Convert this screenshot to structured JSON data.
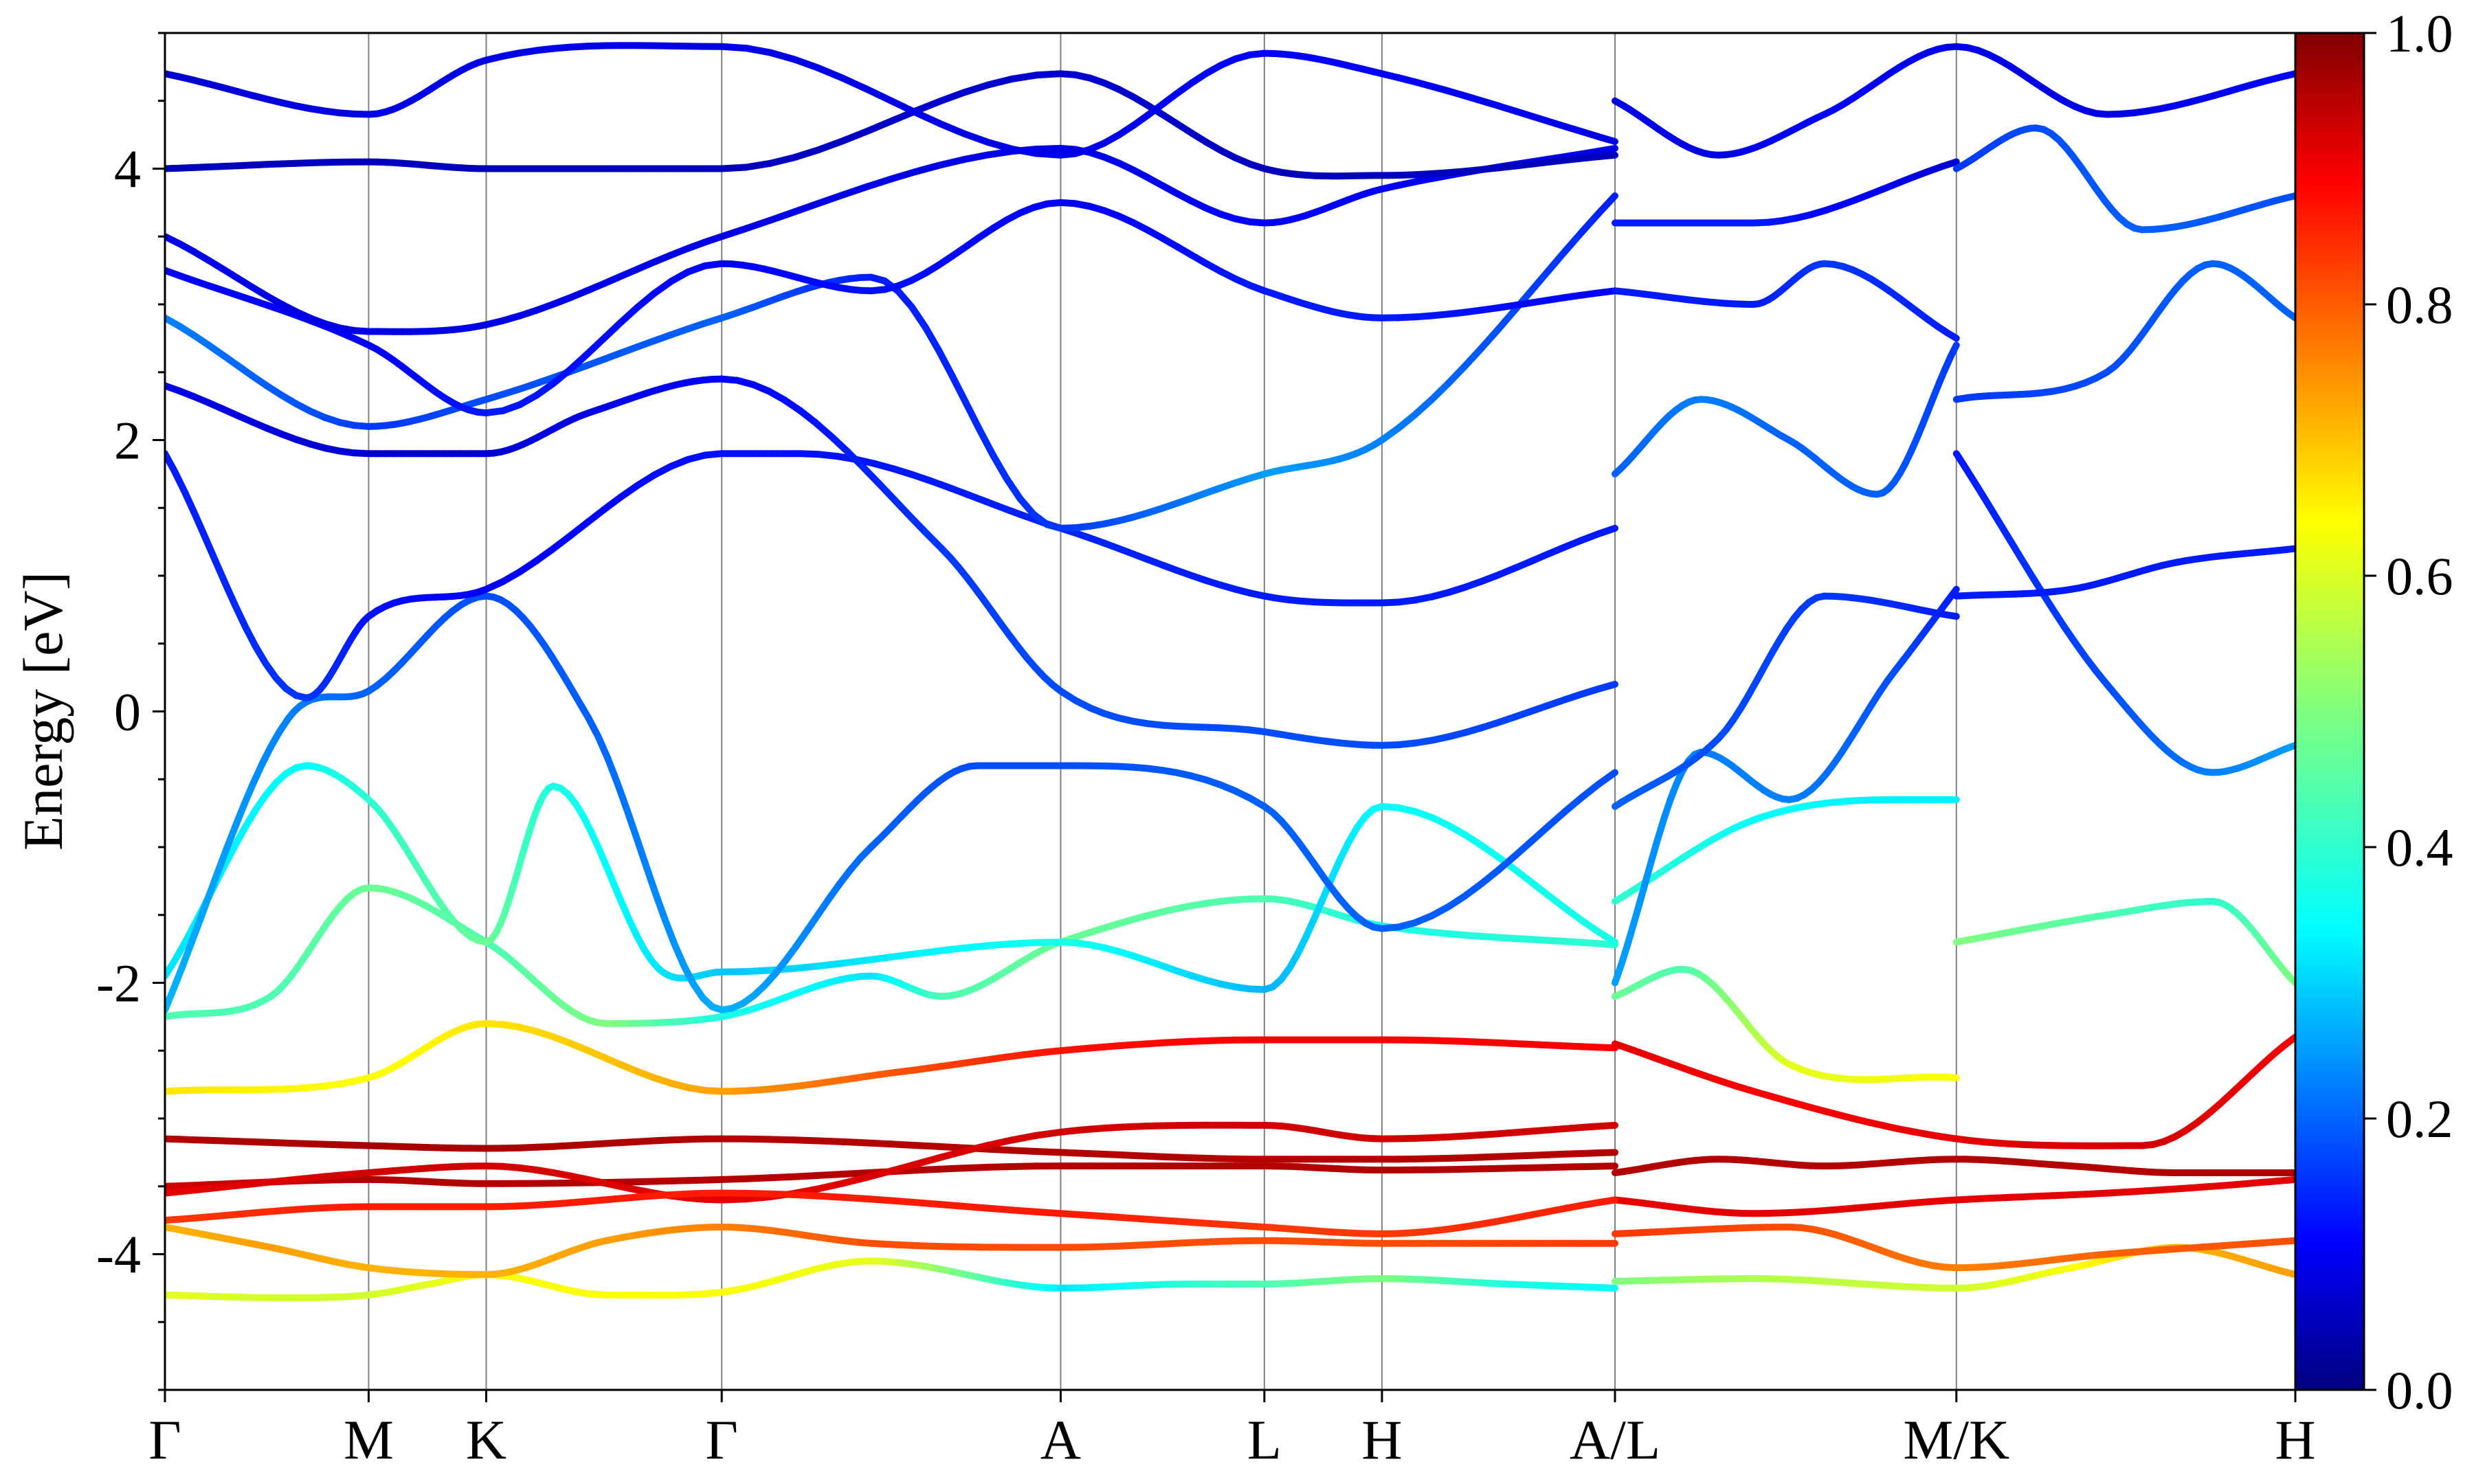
{
  "chart_data": {
    "type": "line",
    "ylabel": "Energy [eV]",
    "ylim": [
      -5,
      5
    ],
    "yticks": [
      -4,
      -2,
      0,
      2,
      4
    ],
    "ytick_labels": [
      "-4",
      "-2",
      "0",
      "2",
      "4"
    ],
    "kpath": {
      "labels": [
        "Γ",
        "M",
        "K",
        "Γ",
        "A",
        "L",
        "H",
        "A/L",
        "M/K",
        "H"
      ],
      "positions": [
        0.0,
        0.577,
        0.91,
        1.577,
        2.537,
        3.114,
        3.447,
        4.107,
        5.074,
        6.034
      ]
    },
    "xlim": [
      0.0,
      6.034
    ],
    "colorbar": {
      "min": 0.0,
      "max": 1.0,
      "ticks": [
        0.0,
        0.2,
        0.4,
        0.6,
        0.8,
        1.0
      ],
      "tick_labels": [
        "0.0",
        "0.2",
        "0.4",
        "0.6",
        "0.8",
        "1.0"
      ],
      "colormap": "jet"
    },
    "series": [
      {
        "x": [
          0.0,
          0.3,
          0.577,
          0.75,
          0.91,
          1.25,
          1.577,
          2.0,
          2.537,
          2.9,
          3.114,
          3.447,
          3.8,
          4.107
        ],
        "values": [
          -4.3,
          -4.32,
          -4.3,
          -4.22,
          -4.15,
          -4.3,
          -4.28,
          -4.05,
          -4.25,
          -4.22,
          -4.22,
          -4.18,
          -4.22,
          -4.25
        ],
        "weights": [
          0.6,
          0.58,
          0.58,
          0.6,
          0.62,
          0.62,
          0.62,
          0.6,
          0.35,
          0.42,
          0.45,
          0.5,
          0.4,
          0.38
        ]
      },
      {
        "x": [
          0.0,
          0.3,
          0.577,
          0.91,
          1.25,
          1.577,
          2.0,
          2.537,
          3.114,
          3.447,
          4.107
        ],
        "values": [
          -3.8,
          -3.95,
          -4.1,
          -4.15,
          -3.9,
          -3.8,
          -3.92,
          -3.95,
          -3.9,
          -3.92,
          -3.92
        ],
        "weights": [
          0.7,
          0.72,
          0.7,
          0.7,
          0.72,
          0.75,
          0.8,
          0.8,
          0.8,
          0.8,
          0.82
        ]
      },
      {
        "x": [
          0.0,
          0.577,
          0.91,
          1.577,
          2.537,
          3.114,
          3.447,
          4.107
        ],
        "values": [
          -3.5,
          -3.45,
          -3.48,
          -3.45,
          -3.35,
          -3.35,
          -3.38,
          -3.35
        ],
        "weights": [
          0.92,
          0.95,
          0.95,
          0.95,
          0.95,
          0.95,
          0.95,
          0.95
        ]
      },
      {
        "x": [
          0.0,
          0.577,
          0.91,
          1.577,
          2.537,
          3.114,
          3.447,
          4.107
        ],
        "values": [
          -3.15,
          -3.2,
          -3.22,
          -3.15,
          -3.25,
          -3.3,
          -3.3,
          -3.25
        ],
        "weights": [
          0.95,
          0.96,
          0.96,
          0.95,
          0.95,
          0.95,
          0.95,
          0.95
        ]
      },
      {
        "x": [
          0.0,
          0.577,
          0.91,
          1.577,
          2.1,
          2.537,
          3.114,
          3.447,
          4.107
        ],
        "values": [
          -2.8,
          -2.7,
          -2.3,
          -2.8,
          -2.65,
          -2.5,
          -2.42,
          -2.42,
          -2.48
        ],
        "weights": [
          0.65,
          0.62,
          0.65,
          0.72,
          0.8,
          0.86,
          0.88,
          0.88,
          0.88
        ]
      },
      {
        "x": [
          0.0,
          0.3,
          0.577,
          0.91,
          1.25,
          1.577,
          2.0,
          2.2,
          2.537,
          3.114,
          3.447,
          4.107
        ],
        "values": [
          -2.25,
          -2.1,
          -1.3,
          -1.7,
          -2.3,
          -2.25,
          -1.95,
          -2.1,
          -1.7,
          -1.38,
          -1.58,
          -1.72
        ],
        "weights": [
          0.45,
          0.45,
          0.48,
          0.45,
          0.5,
          0.4,
          0.35,
          0.45,
          0.48,
          0.45,
          0.4,
          0.42
        ]
      },
      {
        "x": [
          0.0,
          0.4,
          0.577,
          0.91,
          1.1,
          1.4,
          1.577,
          2.537,
          3.114,
          3.447,
          4.107
        ],
        "values": [
          -1.95,
          -0.4,
          -0.65,
          -1.7,
          -0.55,
          -1.9,
          -1.92,
          -1.7,
          -2.05,
          -0.7,
          -1.7
        ],
        "weights": [
          0.35,
          0.38,
          0.42,
          0.48,
          0.4,
          0.35,
          0.32,
          0.4,
          0.3,
          0.38,
          0.4
        ]
      },
      {
        "x": [
          0.0,
          0.35,
          0.577,
          0.91,
          1.2,
          1.577,
          2.0,
          2.3,
          2.537,
          3.114,
          3.447,
          4.107
        ],
        "values": [
          -2.2,
          -0.05,
          0.15,
          0.85,
          -0.05,
          -2.2,
          -1.0,
          -0.4,
          -0.4,
          -0.7,
          -1.6,
          -0.45
        ],
        "weights": [
          0.3,
          0.25,
          0.22,
          0.2,
          0.22,
          0.3,
          0.22,
          0.2,
          0.2,
          0.22,
          0.22,
          0.2
        ]
      },
      {
        "x": [
          0.0,
          0.4,
          0.577,
          0.91,
          1.577,
          1.8,
          2.537,
          3.114,
          3.447,
          4.107
        ],
        "values": [
          1.9,
          0.1,
          0.7,
          0.9,
          1.9,
          1.9,
          1.35,
          0.85,
          0.8,
          1.35
        ],
        "weights": [
          0.15,
          0.18,
          0.14,
          0.12,
          0.14,
          0.14,
          0.16,
          0.15,
          0.15,
          0.15
        ]
      },
      {
        "x": [
          0.0,
          0.577,
          0.91,
          1.2,
          1.577,
          2.2,
          2.537,
          3.114,
          3.447,
          4.107
        ],
        "values": [
          2.4,
          1.9,
          1.9,
          2.2,
          2.45,
          1.2,
          0.15,
          -0.15,
          -0.25,
          0.2
        ],
        "weights": [
          0.1,
          0.08,
          0.08,
          0.1,
          0.12,
          0.18,
          0.2,
          0.2,
          0.2,
          0.18
        ]
      },
      {
        "x": [
          0.0,
          0.577,
          0.91,
          1.577,
          2.0,
          2.537,
          3.114,
          3.447,
          4.107
        ],
        "values": [
          2.9,
          2.1,
          2.3,
          2.9,
          3.2,
          1.35,
          1.75,
          2.0,
          3.8
        ],
        "weights": [
          0.25,
          0.18,
          0.2,
          0.22,
          0.15,
          0.18,
          0.28,
          0.25,
          0.15
        ]
      },
      {
        "x": [
          0.0,
          0.577,
          0.91,
          1.577,
          2.0,
          2.537,
          3.114,
          3.447,
          4.107
        ],
        "values": [
          3.25,
          2.7,
          2.2,
          3.3,
          3.1,
          3.75,
          3.1,
          2.9,
          3.1
        ],
        "weights": [
          0.12,
          0.12,
          0.15,
          0.12,
          0.14,
          0.12,
          0.15,
          0.15,
          0.12
        ]
      },
      {
        "x": [
          0.0,
          0.577,
          0.91,
          1.577,
          2.537,
          3.114,
          3.447,
          4.107
        ],
        "values": [
          3.5,
          2.8,
          2.85,
          3.5,
          4.15,
          3.6,
          3.85,
          4.15
        ],
        "weights": [
          0.1,
          0.1,
          0.1,
          0.1,
          0.1,
          0.12,
          0.12,
          0.1
        ]
      },
      {
        "x": [
          0.0,
          0.577,
          0.91,
          1.577,
          2.537,
          3.114,
          3.447,
          4.107
        ],
        "values": [
          4.0,
          4.05,
          4.0,
          4.0,
          4.7,
          4.0,
          3.95,
          4.1
        ],
        "weights": [
          0.06,
          0.06,
          0.06,
          0.06,
          0.08,
          0.06,
          0.06,
          0.06
        ]
      },
      {
        "x": [
          0.0,
          0.577,
          0.91,
          1.577,
          2.537,
          3.114,
          3.447,
          4.107
        ],
        "values": [
          4.7,
          4.4,
          4.8,
          4.9,
          4.1,
          4.85,
          4.7,
          4.2
        ],
        "weights": [
          0.08,
          0.1,
          0.1,
          0.1,
          0.1,
          0.12,
          0.12,
          0.1
        ]
      },
      {
        "x": [
          4.107,
          4.4,
          4.7,
          5.074,
          5.4,
          5.7,
          6.034
        ],
        "values": [
          -3.4,
          -3.3,
          -3.35,
          -3.3,
          -3.35,
          -3.4,
          -3.4
        ],
        "weights": [
          0.95,
          0.95,
          0.95,
          0.95,
          0.95,
          0.95,
          0.95
        ]
      },
      {
        "x": [
          4.107,
          4.5,
          5.074,
          5.5,
          5.8,
          6.034
        ],
        "values": [
          -3.6,
          -3.7,
          -3.6,
          -3.55,
          -3.5,
          -3.45
        ],
        "weights": [
          0.9,
          0.9,
          0.9,
          0.9,
          0.9,
          0.9
        ]
      },
      {
        "x": [
          4.107,
          4.5,
          5.074,
          5.4,
          5.7,
          6.034
        ],
        "values": [
          -4.2,
          -4.18,
          -4.25,
          -4.1,
          -3.95,
          -4.15
        ],
        "weights": [
          0.5,
          0.55,
          0.58,
          0.62,
          0.7,
          0.72
        ]
      },
      {
        "x": [
          4.107,
          4.6,
          5.074,
          5.5,
          6.034
        ],
        "values": [
          -3.85,
          -3.8,
          -4.1,
          -4.0,
          -3.9
        ],
        "weights": [
          0.82,
          0.8,
          0.75,
          0.78,
          0.8
        ]
      },
      {
        "x": [
          4.107,
          4.5,
          5.074,
          5.6,
          6.034
        ],
        "values": [
          -2.45,
          -2.8,
          -3.15,
          -3.2,
          -2.4
        ],
        "weights": [
          0.9,
          0.88,
          0.9,
          0.92,
          0.88
        ]
      },
      {
        "x": [
          4.107,
          4.3,
          4.6,
          5.074
        ],
        "values": [
          -2.1,
          -1.9,
          -2.6,
          -2.7
        ],
        "weights": [
          0.48,
          0.45,
          0.6,
          0.62
        ]
      },
      {
        "x": [
          4.107,
          4.5,
          4.9,
          5.074
        ],
        "values": [
          -1.4,
          -0.8,
          -0.65,
          -0.65
        ],
        "weights": [
          0.42,
          0.38,
          0.36,
          0.36
        ]
      },
      {
        "x": [
          5.074,
          5.5,
          5.8,
          6.034
        ],
        "values": [
          -1.7,
          -1.5,
          -1.4,
          -2.0
        ],
        "weights": [
          0.5,
          0.45,
          0.42,
          0.5
        ]
      },
      {
        "x": [
          4.107,
          4.35,
          4.6,
          4.9,
          5.074
        ],
        "values": [
          -2.0,
          -0.3,
          -0.65,
          0.3,
          0.9
        ],
        "weights": [
          0.28,
          0.25,
          0.25,
          0.2,
          0.15
        ]
      },
      {
        "x": [
          4.107,
          4.4,
          4.7,
          5.074
        ],
        "values": [
          -0.7,
          -0.2,
          0.85,
          0.7
        ],
        "weights": [
          0.22,
          0.2,
          0.18,
          0.15
        ]
      },
      {
        "x": [
          5.074,
          5.5,
          5.8,
          6.034
        ],
        "values": [
          1.9,
          0.2,
          -0.45,
          -0.25
        ],
        "weights": [
          0.15,
          0.2,
          0.25,
          0.28
        ]
      },
      {
        "x": [
          5.074,
          5.4,
          5.7,
          6.034
        ],
        "values": [
          0.85,
          0.9,
          1.1,
          1.2
        ],
        "weights": [
          0.15,
          0.15,
          0.15,
          0.15
        ]
      },
      {
        "x": [
          4.107,
          4.35,
          4.6,
          4.85,
          5.074
        ],
        "values": [
          1.75,
          2.3,
          2.0,
          1.6,
          2.7
        ],
        "weights": [
          0.22,
          0.25,
          0.22,
          0.22,
          0.18
        ]
      },
      {
        "x": [
          4.107,
          4.5,
          4.7,
          5.074
        ],
        "values": [
          3.1,
          3.0,
          3.3,
          2.75
        ],
        "weights": [
          0.15,
          0.15,
          0.18,
          0.15
        ]
      },
      {
        "x": [
          4.107,
          4.5,
          5.074
        ],
        "values": [
          3.6,
          3.6,
          4.05
        ],
        "weights": [
          0.15,
          0.15,
          0.08
        ]
      },
      {
        "x": [
          5.074,
          5.5,
          5.8,
          6.034
        ],
        "values": [
          2.3,
          2.5,
          3.3,
          2.9
        ],
        "weights": [
          0.18,
          0.2,
          0.22,
          0.22
        ]
      },
      {
        "x": [
          5.074,
          5.3,
          5.6,
          6.034
        ],
        "values": [
          4.0,
          4.3,
          3.55,
          3.8
        ],
        "weights": [
          0.18,
          0.2,
          0.22,
          0.2
        ]
      },
      {
        "x": [
          4.107,
          4.4,
          4.7,
          5.074,
          5.5,
          6.034
        ],
        "values": [
          4.5,
          4.1,
          4.4,
          4.9,
          4.4,
          4.7
        ],
        "weights": [
          0.1,
          0.1,
          0.12,
          0.1,
          0.1,
          0.12
        ]
      },
      {
        "x": [
          0.0,
          0.577,
          0.91,
          1.577,
          2.537,
          3.114,
          3.447,
          4.107
        ],
        "values": [
          -3.55,
          -3.4,
          -3.35,
          -3.6,
          -3.1,
          -3.05,
          -3.15,
          -3.05
        ],
        "weights": [
          0.9,
          0.92,
          0.92,
          0.9,
          0.92,
          0.92,
          0.92,
          0.92
        ]
      },
      {
        "x": [
          0.0,
          0.577,
          0.91,
          1.577,
          2.537,
          3.114,
          3.447,
          4.107
        ],
        "values": [
          -3.75,
          -3.65,
          -3.65,
          -3.55,
          -3.7,
          -3.8,
          -3.85,
          -3.6
        ],
        "weights": [
          0.82,
          0.85,
          0.85,
          0.85,
          0.85,
          0.82,
          0.82,
          0.85
        ]
      }
    ]
  }
}
